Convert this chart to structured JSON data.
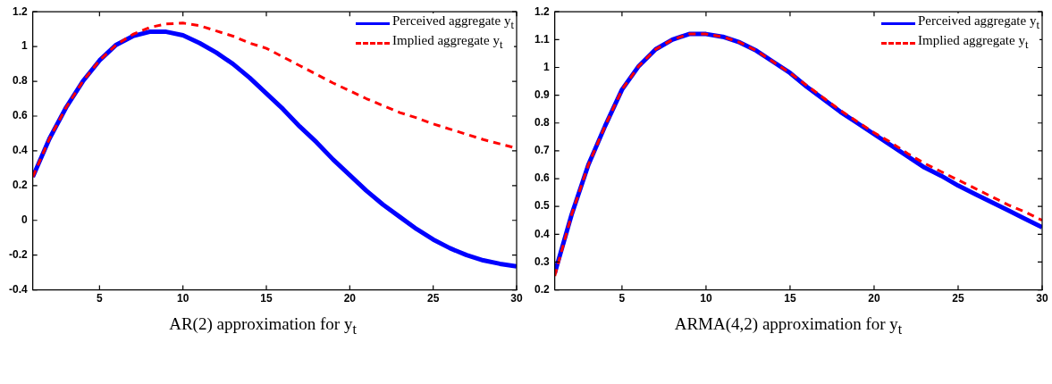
{
  "chart_data": [
    {
      "type": "line",
      "xlabel": "AR(2) approximation for y$_{t}$",
      "legend": "top right",
      "marker": "none",
      "grid": false,
      "x": [
        1,
        2,
        3,
        4,
        5,
        6,
        7,
        8,
        9,
        10,
        11,
        12,
        13,
        14,
        15,
        16,
        17,
        18,
        19,
        20,
        21,
        22,
        23,
        24,
        25,
        26,
        27,
        28,
        29,
        30
      ],
      "series": [
        {
          "name": "Perceived aggregate y$_{t}$",
          "color": "#0000ff",
          "line_style": "solid",
          "values": [
            0.25,
            0.47,
            0.65,
            0.8,
            0.92,
            1.01,
            1.06,
            1.085,
            1.085,
            1.065,
            1.02,
            0.965,
            0.9,
            0.82,
            0.73,
            0.64,
            0.54,
            0.45,
            0.35,
            0.26,
            0.17,
            0.09,
            0.02,
            -0.05,
            -0.11,
            -0.16,
            -0.2,
            -0.23,
            -0.25,
            -0.265
          ]
        },
        {
          "name": "Implied aggregate y$_{t}$",
          "color": "#ff0000",
          "line_style": "dashed",
          "values": [
            0.25,
            0.47,
            0.65,
            0.8,
            0.92,
            1.01,
            1.07,
            1.11,
            1.13,
            1.135,
            1.12,
            1.09,
            1.06,
            1.02,
            0.99,
            0.94,
            0.89,
            0.84,
            0.79,
            0.745,
            0.7,
            0.66,
            0.62,
            0.59,
            0.555,
            0.525,
            0.495,
            0.465,
            0.44,
            0.415
          ]
        }
      ],
      "xlim": [
        1,
        30
      ],
      "xticks": [
        5,
        10,
        15,
        20,
        25,
        30
      ],
      "ylim": [
        -0.4,
        1.2
      ],
      "yticks": [
        -0.4,
        -0.2,
        0,
        0.2,
        0.4,
        0.6,
        0.8,
        1,
        1.2
      ]
    },
    {
      "type": "line",
      "xlabel": "ARMA(4,2) approximation for y$_{t}$",
      "legend": "top right",
      "marker": "none",
      "grid": false,
      "x": [
        1,
        2,
        3,
        4,
        5,
        6,
        7,
        8,
        9,
        10,
        11,
        12,
        13,
        14,
        15,
        16,
        17,
        18,
        19,
        20,
        21,
        22,
        23,
        24,
        25,
        26,
        27,
        28,
        29,
        30
      ],
      "series": [
        {
          "name": "Perceived aggregate y$_{t}$",
          "color": "#0000ff",
          "line_style": "solid",
          "values": [
            0.26,
            0.47,
            0.65,
            0.79,
            0.92,
            1.005,
            1.065,
            1.1,
            1.12,
            1.12,
            1.11,
            1.09,
            1.06,
            1.02,
            0.98,
            0.93,
            0.885,
            0.84,
            0.8,
            0.76,
            0.72,
            0.68,
            0.64,
            0.61,
            0.575,
            0.545,
            0.515,
            0.485,
            0.455,
            0.425
          ]
        },
        {
          "name": "Implied aggregate y$_{t}$",
          "color": "#ff0000",
          "line_style": "dashed",
          "values": [
            0.25,
            0.47,
            0.65,
            0.79,
            0.92,
            1.005,
            1.065,
            1.1,
            1.12,
            1.12,
            1.11,
            1.09,
            1.06,
            1.02,
            0.98,
            0.935,
            0.89,
            0.845,
            0.805,
            0.765,
            0.73,
            0.69,
            0.655,
            0.625,
            0.595,
            0.565,
            0.535,
            0.505,
            0.48,
            0.45
          ]
        }
      ],
      "xlim": [
        1,
        30
      ],
      "xticks": [
        5,
        10,
        15,
        20,
        25,
        30
      ],
      "ylim": [
        0.2,
        1.2
      ],
      "yticks": [
        0.2,
        0.3,
        0.4,
        0.5,
        0.6,
        0.7,
        0.8,
        0.9,
        1,
        1.1,
        1.2
      ]
    }
  ]
}
